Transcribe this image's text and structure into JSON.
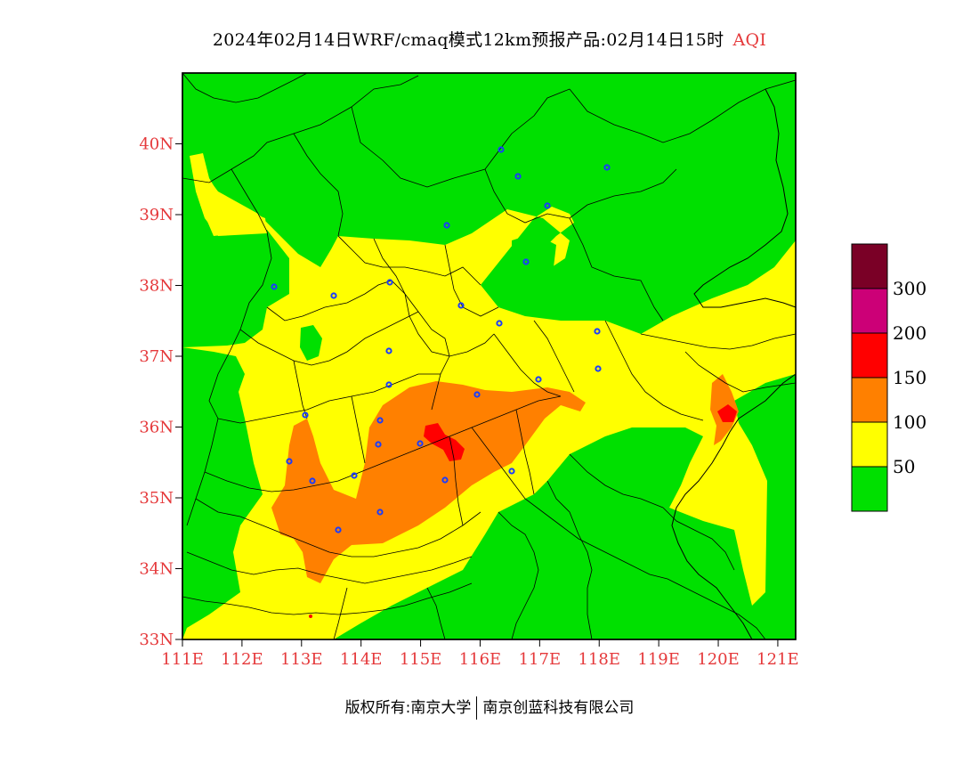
{
  "title": {
    "main": "2024年02月14日WRF/cmaq模式12km预报产品:02月14日15时",
    "variable": "AQI"
  },
  "axes": {
    "lat_ticks": [
      "40N",
      "39N",
      "38N",
      "37N",
      "36N",
      "35N",
      "34N",
      "33N"
    ],
    "lon_ticks": [
      "111E",
      "112E",
      "113E",
      "114E",
      "115E",
      "116E",
      "117E",
      "118E",
      "119E",
      "120E",
      "121E"
    ],
    "lat_range": [
      33,
      41
    ],
    "lon_range": [
      111,
      121.3
    ]
  },
  "legend": {
    "labels": [
      "300",
      "200",
      "150",
      "100",
      "50"
    ],
    "colors": [
      "#7a0026",
      "#cc0077",
      "#ff0000",
      "#ff8000",
      "#ffff00",
      "#00e000"
    ]
  },
  "colors": {
    "aqi_0_50": "#00e000",
    "aqi_50_100": "#ffff00",
    "aqi_100_150": "#ff8000",
    "aqi_150_200": "#ff0000",
    "station_marker": "#1a3cff",
    "axis_text": "#e5393b"
  },
  "footer": {
    "left": "版权所有:南京大学",
    "right": "南京创蓝科技有限公司"
  }
}
